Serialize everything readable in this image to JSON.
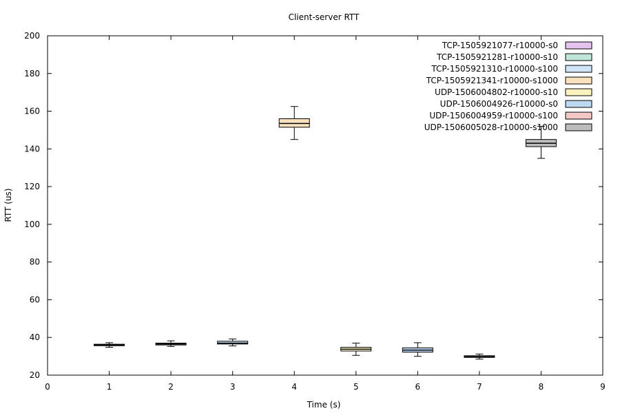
{
  "chart_data": {
    "type": "boxplot",
    "title": "Client-server RTT",
    "xlabel": "Time (s)",
    "ylabel": "RTT (us)",
    "xlim": [
      0,
      9
    ],
    "ylim": [
      20,
      200
    ],
    "x_ticks": [
      0,
      1,
      2,
      3,
      4,
      5,
      6,
      7,
      8,
      9
    ],
    "y_ticks": [
      20,
      40,
      60,
      80,
      100,
      120,
      140,
      160,
      180,
      200
    ],
    "grid": false,
    "legend_position": "top-right",
    "series": [
      {
        "name": "TCP-1505921077-r10000-s0",
        "x": 1,
        "whisker_low": 34.8,
        "q1": 35.6,
        "median": 36.0,
        "q3": 36.4,
        "whisker_high": 37.2,
        "color": "#e5c3f0"
      },
      {
        "name": "TCP-1505921281-r10000-s10",
        "x": 2,
        "whisker_low": 35.2,
        "q1": 36.0,
        "median": 36.5,
        "q3": 37.0,
        "whisker_high": 38.2,
        "color": "#bfe6d8"
      },
      {
        "name": "TCP-1505921310-r10000-s100",
        "x": 3,
        "whisker_low": 35.5,
        "q1": 36.5,
        "median": 37.0,
        "q3": 38.0,
        "whisker_high": 39.2,
        "color": "#cfe4f7"
      },
      {
        "name": "TCP-1505921341-r10000-s1000",
        "x": 4,
        "whisker_low": 145.0,
        "q1": 151.5,
        "median": 153.5,
        "q3": 156.0,
        "whisker_high": 162.5,
        "color": "#fbe2be"
      },
      {
        "name": "UDP-1506004802-r10000-s10",
        "x": 5,
        "whisker_low": 30.5,
        "q1": 32.8,
        "median": 33.8,
        "q3": 34.8,
        "whisker_high": 37.0,
        "color": "#fcf4c0"
      },
      {
        "name": "UDP-1506004926-r10000-s0",
        "x": 6,
        "whisker_low": 30.0,
        "q1": 32.2,
        "median": 33.3,
        "q3": 34.5,
        "whisker_high": 37.2,
        "color": "#bdd8f0"
      },
      {
        "name": "UDP-1506004959-r10000-s100",
        "x": 7,
        "whisker_low": 28.5,
        "q1": 29.4,
        "median": 29.8,
        "q3": 30.3,
        "whisker_high": 31.2,
        "color": "#f5c6c6"
      },
      {
        "name": "UDP-1506005028-r10000-s1000",
        "x": 8,
        "whisker_low": 135.0,
        "q1": 141.2,
        "median": 143.0,
        "q3": 145.0,
        "whisker_high": 152.0,
        "color": "#bdbdbd"
      }
    ]
  }
}
